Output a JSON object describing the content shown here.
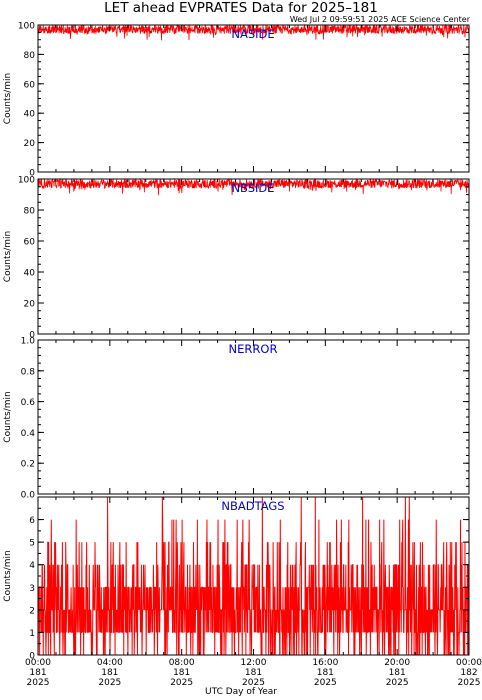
{
  "page": {
    "title": "LET ahead EVPRATES Data for 2025–181",
    "timestamp": "Wed Jul  2 09:59:51 2025 ACE Science Center",
    "xlabel": "UTC Day of Year"
  },
  "colors": {
    "trace": "#ff0000",
    "panel_label": "#0000cc",
    "axes": "#000000",
    "background": "#ffffff"
  },
  "chart_data": [
    {
      "type": "line",
      "panel_label": "NASIDE",
      "ylabel": "Counts/min",
      "ylim": [
        0,
        100
      ],
      "yticks": [
        "0",
        "20",
        "40",
        "60",
        "80",
        "100"
      ],
      "xlim": [
        0,
        24
      ],
      "x_unit": "hours UTC, day 181",
      "series": [
        {
          "values_summary": {
            "points": 1440,
            "mean": 97,
            "min": 93,
            "max": 101
          }
        }
      ]
    },
    {
      "type": "line",
      "panel_label": "NBSIDE",
      "ylabel": "Counts/min",
      "ylim": [
        0,
        100
      ],
      "yticks": [
        "0",
        "20",
        "40",
        "60",
        "80",
        "100"
      ],
      "xlim": [
        0,
        24
      ],
      "series": [
        {
          "values_summary": {
            "points": 1440,
            "mean": 97,
            "min": 92,
            "max": 101
          }
        }
      ]
    },
    {
      "type": "line",
      "panel_label": "NERROR",
      "ylabel": "Counts/min",
      "ylim": [
        0,
        1
      ],
      "yticks": [
        "0.0",
        "0.2",
        "0.4",
        "0.6",
        "0.8",
        "1.0"
      ],
      "xlim": [
        0,
        24
      ],
      "series": [
        {
          "values_summary": {
            "points": 1440,
            "mean": 0,
            "min": 0,
            "max": 0
          }
        }
      ]
    },
    {
      "type": "line",
      "panel_label": "NBADTAGS",
      "ylabel": "Counts/min",
      "ylim": [
        0,
        7
      ],
      "yticks": [
        "0",
        "1",
        "2",
        "3",
        "4",
        "5",
        "6"
      ],
      "xlim": [
        0,
        24
      ],
      "xticks": [
        [
          "00:00",
          "181",
          "2025"
        ],
        [
          "04:00",
          "181",
          "2025"
        ],
        [
          "08:00",
          "181",
          "2025"
        ],
        [
          "12:00",
          "181",
          "2025"
        ],
        [
          "16:00",
          "181",
          "2025"
        ],
        [
          "20:00",
          "181",
          "2025"
        ],
        [
          "00:00",
          "182",
          "2025"
        ]
      ],
      "series": [
        {
          "values_summary": {
            "points": 1440,
            "typical_range": [
              0,
              4
            ],
            "max": 7
          }
        }
      ]
    }
  ]
}
